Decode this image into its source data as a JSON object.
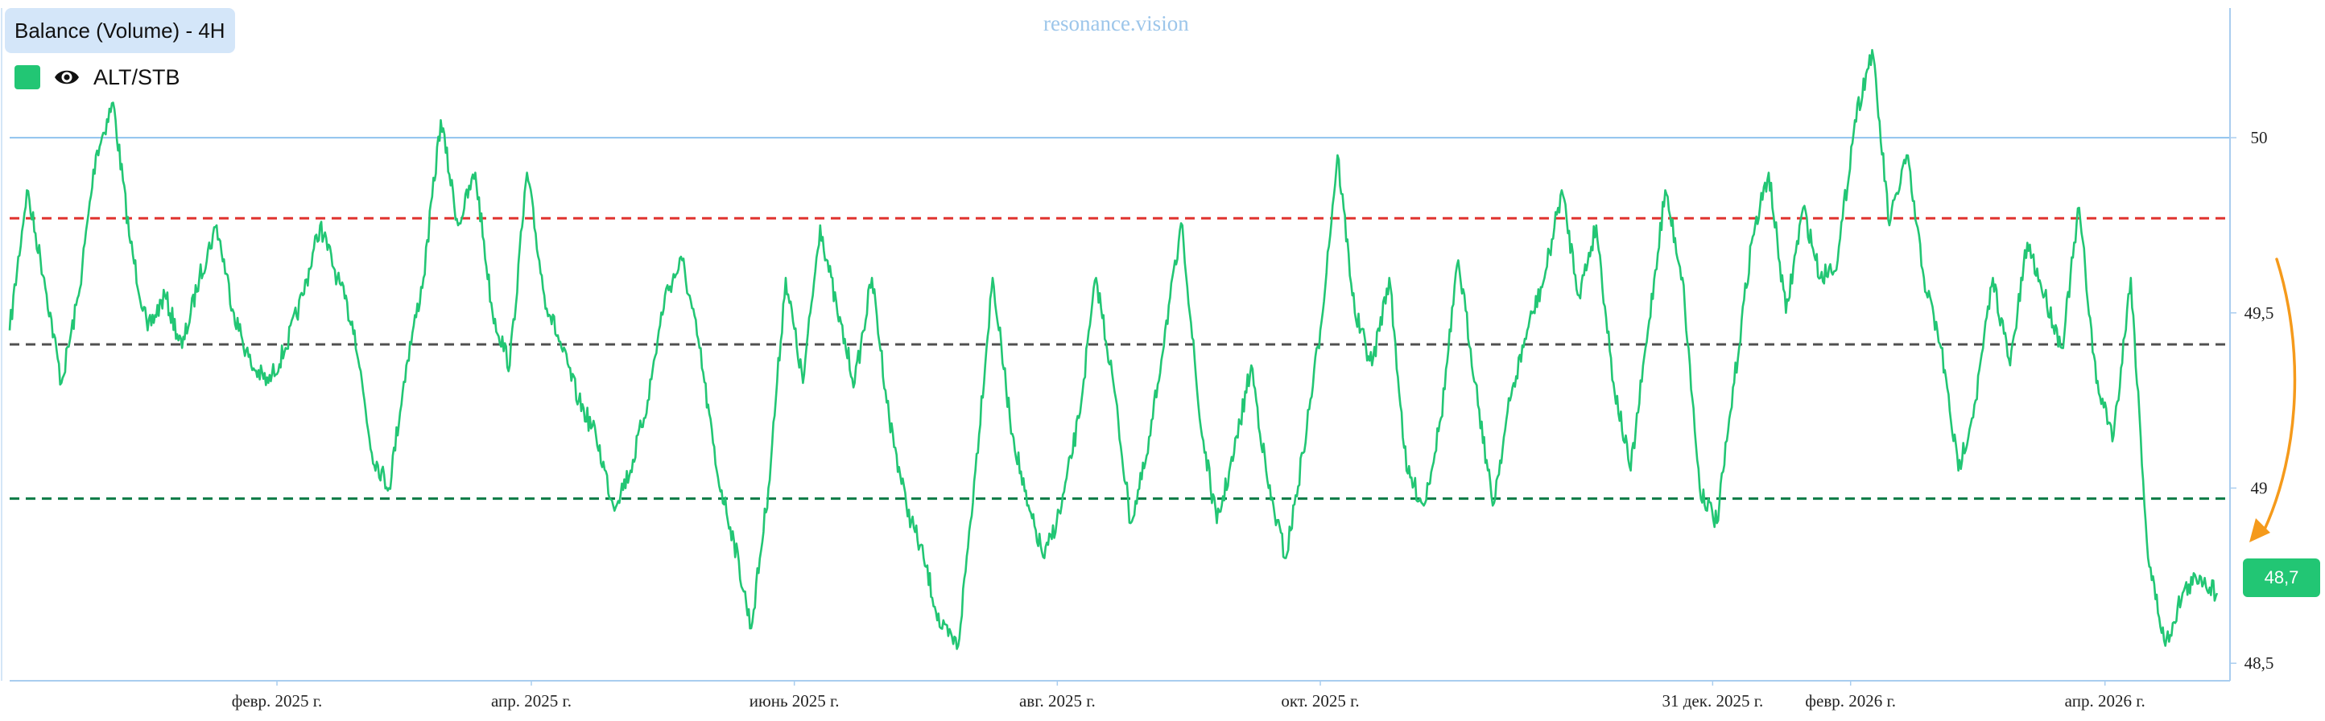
{
  "header": {
    "title": "Balance (Volume) - 4H"
  },
  "legend": {
    "series_label": "ALT/STB",
    "eye_icon": "eye-icon"
  },
  "watermark": "resonance.vision",
  "price_tag": "48,7",
  "colors": {
    "series": "#22c674",
    "axis": "#a9cdef",
    "top_level": "#8fc2ee",
    "red_dash": "#e0332f",
    "grey_dash": "#505050",
    "green_dash": "#0b7a45",
    "arrow": "#f59a1b",
    "title_bg": "#d4e6f9"
  },
  "chart_data": {
    "type": "line",
    "title": "Balance (Volume) - 4H",
    "xlabel": "",
    "ylabel": "",
    "x_ticks": [
      "февр. 2025 г.",
      "апр. 2025 г.",
      "июнь 2025 г.",
      "авг. 2025 г.",
      "окт. 2025 г.",
      "31 дек. 2025 г.",
      "февр. 2026 г.",
      "апр. 2026 г."
    ],
    "y_ticks": [
      "50",
      "49,5",
      "49",
      "48,5"
    ],
    "y_tick_values": [
      50,
      49.5,
      49,
      48.5
    ],
    "ylim": [
      48.45,
      50.37
    ],
    "xlim": [
      "2024-12-01",
      "2026-04-30"
    ],
    "x_tick_dates": [
      "2025-02-01",
      "2025-04-01",
      "2025-06-01",
      "2025-08-01",
      "2025-10-01",
      "2025-12-31",
      "2026-02-01",
      "2026-04-01"
    ],
    "reference_lines": [
      {
        "value": 50.0,
        "style": "solid"
      },
      {
        "value": 49.77,
        "style": "dashed"
      },
      {
        "value": 49.41,
        "style": "dashed"
      },
      {
        "value": 48.97,
        "style": "dashed"
      }
    ],
    "last_value": 48.7,
    "grid": false,
    "legend_position": "top-left",
    "series": [
      {
        "name": "ALT/STB",
        "x": [
          "2024-12-01",
          "2024-12-05",
          "2024-12-09",
          "2024-12-13",
          "2024-12-17",
          "2024-12-21",
          "2024-12-25",
          "2024-12-29",
          "2025-01-02",
          "2025-01-06",
          "2025-01-10",
          "2025-01-14",
          "2025-01-18",
          "2025-01-22",
          "2025-01-26",
          "2025-01-30",
          "2025-02-03",
          "2025-02-07",
          "2025-02-11",
          "2025-02-15",
          "2025-02-19",
          "2025-02-23",
          "2025-02-27",
          "2025-03-03",
          "2025-03-07",
          "2025-03-11",
          "2025-03-15",
          "2025-03-19",
          "2025-03-23",
          "2025-03-27",
          "2025-03-31",
          "2025-04-04",
          "2025-04-08",
          "2025-04-12",
          "2025-04-16",
          "2025-04-20",
          "2025-04-24",
          "2025-04-28",
          "2025-05-02",
          "2025-05-06",
          "2025-05-10",
          "2025-05-14",
          "2025-05-18",
          "2025-05-22",
          "2025-05-26",
          "2025-05-30",
          "2025-06-03",
          "2025-06-07",
          "2025-06-11",
          "2025-06-15",
          "2025-06-19",
          "2025-06-23",
          "2025-06-27",
          "2025-07-01",
          "2025-07-05",
          "2025-07-09",
          "2025-07-13",
          "2025-07-17",
          "2025-07-21",
          "2025-07-25",
          "2025-07-29",
          "2025-08-02",
          "2025-08-06",
          "2025-08-10",
          "2025-08-14",
          "2025-08-18",
          "2025-08-22",
          "2025-08-26",
          "2025-08-30",
          "2025-09-03",
          "2025-09-07",
          "2025-09-11",
          "2025-09-15",
          "2025-09-19",
          "2025-09-23",
          "2025-09-27",
          "2025-10-01",
          "2025-10-05",
          "2025-10-09",
          "2025-10-13",
          "2025-10-17",
          "2025-10-21",
          "2025-10-25",
          "2025-10-29",
          "2025-11-02",
          "2025-11-06",
          "2025-11-10",
          "2025-11-14",
          "2025-11-18",
          "2025-11-22",
          "2025-11-26",
          "2025-11-30",
          "2025-12-04",
          "2025-12-08",
          "2025-12-12",
          "2025-12-16",
          "2025-12-20",
          "2025-12-24",
          "2025-12-28",
          "2026-01-01",
          "2026-01-05",
          "2026-01-09",
          "2026-01-13",
          "2026-01-17",
          "2026-01-21",
          "2026-01-25",
          "2026-01-29",
          "2026-02-02",
          "2026-02-06",
          "2026-02-10",
          "2026-02-14",
          "2026-02-18",
          "2026-02-22",
          "2026-02-26",
          "2026-03-02",
          "2026-03-06",
          "2026-03-10",
          "2026-03-14",
          "2026-03-18",
          "2026-03-22",
          "2026-03-26",
          "2026-03-30",
          "2026-04-03",
          "2026-04-07",
          "2026-04-11",
          "2026-04-15",
          "2026-04-19",
          "2026-04-23",
          "2026-04-27"
        ],
        "values": [
          49.45,
          49.85,
          49.6,
          49.3,
          49.55,
          49.95,
          50.1,
          49.7,
          49.45,
          49.55,
          49.4,
          49.6,
          49.75,
          49.5,
          49.35,
          49.3,
          49.4,
          49.55,
          49.75,
          49.6,
          49.45,
          49.1,
          49.0,
          49.35,
          49.6,
          50.05,
          49.75,
          49.9,
          49.5,
          49.35,
          49.9,
          49.55,
          49.4,
          49.25,
          49.15,
          48.95,
          49.05,
          49.25,
          49.55,
          49.65,
          49.4,
          49.05,
          48.85,
          48.6,
          49.0,
          49.6,
          49.3,
          49.75,
          49.5,
          49.3,
          49.6,
          49.2,
          48.95,
          48.8,
          48.6,
          48.55,
          49.05,
          49.6,
          49.2,
          48.95,
          48.8,
          48.95,
          49.2,
          49.6,
          49.3,
          48.9,
          49.1,
          49.45,
          49.75,
          49.2,
          48.9,
          49.1,
          49.35,
          49.0,
          48.8,
          49.1,
          49.45,
          49.95,
          49.5,
          49.35,
          49.6,
          49.05,
          48.95,
          49.2,
          49.65,
          49.3,
          48.95,
          49.25,
          49.45,
          49.6,
          49.85,
          49.55,
          49.75,
          49.3,
          49.05,
          49.45,
          49.85,
          49.6,
          49.0,
          48.9,
          49.3,
          49.7,
          49.9,
          49.5,
          49.8,
          49.6,
          49.65,
          50.05,
          50.25,
          49.75,
          49.95,
          49.6,
          49.4,
          49.05,
          49.25,
          49.6,
          49.35,
          49.7,
          49.55,
          49.4,
          49.8,
          49.3,
          49.15,
          49.6,
          48.8,
          48.55,
          48.7,
          48.75,
          48.7
        ]
      }
    ]
  }
}
